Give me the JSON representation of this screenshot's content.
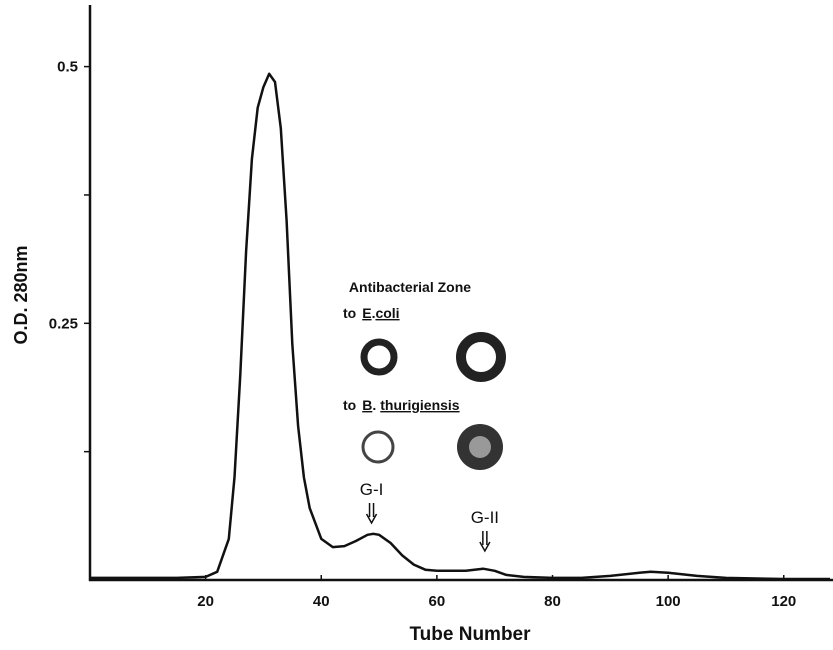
{
  "chart_data": {
    "type": "line",
    "xlabel": "Tube Number",
    "ylabel": "O.D. 280nm",
    "xlim": [
      0,
      128
    ],
    "ylim": [
      0,
      0.56
    ],
    "xticks": [
      20,
      40,
      60,
      80,
      100,
      120
    ],
    "yticks": [
      0.25,
      0.5
    ],
    "yminor_ticks": [
      0.125,
      0.375
    ],
    "color": "#111111",
    "x": [
      0,
      15,
      20,
      22,
      24,
      25,
      26,
      27,
      28,
      29,
      30,
      31,
      32,
      33,
      34,
      35,
      36,
      37,
      38,
      40,
      42,
      44,
      46,
      48,
      49,
      50,
      52,
      54,
      56,
      58,
      60,
      65,
      68,
      70,
      72,
      75,
      80,
      85,
      90,
      95,
      97,
      100,
      105,
      110,
      120,
      128
    ],
    "values": [
      0.002,
      0.002,
      0.003,
      0.008,
      0.04,
      0.1,
      0.2,
      0.32,
      0.41,
      0.46,
      0.48,
      0.493,
      0.485,
      0.44,
      0.35,
      0.23,
      0.15,
      0.1,
      0.07,
      0.04,
      0.032,
      0.033,
      0.038,
      0.044,
      0.045,
      0.044,
      0.036,
      0.024,
      0.015,
      0.01,
      0.009,
      0.009,
      0.011,
      0.009,
      0.005,
      0.003,
      0.002,
      0.002,
      0.004,
      0.007,
      0.008,
      0.007,
      0.004,
      0.002,
      0.001,
      0.001
    ],
    "annotations": {
      "zone_title": "Antibacterial Zone",
      "ecoli": [
        "to",
        "E",
        ".",
        "coli"
      ],
      "bthur": [
        "to",
        "B",
        ".",
        "thurigiensis"
      ],
      "peaks": [
        {
          "label": "G-I",
          "x": 48.7
        },
        {
          "label": "G-II",
          "x": 68.3
        }
      ]
    }
  }
}
